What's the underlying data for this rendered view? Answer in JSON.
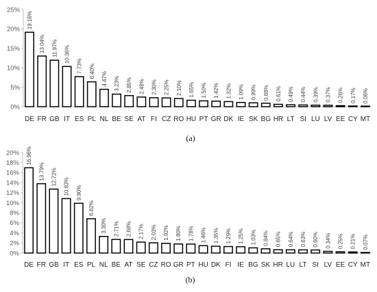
{
  "chart_data": [
    {
      "type": "bar",
      "panel_label": "(a)",
      "categories": [
        "DE",
        "FR",
        "GB",
        "IT",
        "ES",
        "PL",
        "NL",
        "BE",
        "SE",
        "AT",
        "FI",
        "CZ",
        "RO",
        "HU",
        "PT",
        "GR",
        "DK",
        "IE",
        "SK",
        "BG",
        "HR",
        "LT",
        "SI",
        "LU",
        "LV",
        "EE",
        "CY",
        "MT"
      ],
      "values": [
        19.16,
        13.04,
        11.97,
        10.36,
        7.73,
        6.4,
        4.47,
        3.23,
        2.85,
        2.48,
        2.3,
        2.25,
        2.1,
        1.65,
        1.5,
        1.42,
        1.32,
        1.09,
        0.99,
        0.88,
        0.61,
        0.49,
        0.44,
        0.39,
        0.37,
        0.26,
        0.17,
        0.06
      ],
      "data_labels": [
        "19.16%",
        "13.04%",
        "11.97%",
        "10.36%",
        "7.73%",
        "6.40%",
        "4.47%",
        "3.23%",
        "2.85%",
        "2.48%",
        "2.30%",
        "2.25%",
        "2.10%",
        "1.65%",
        "1.50%",
        "1.42%",
        "1.32%",
        "1.09%",
        "0.99%",
        "0.88%",
        "0.61%",
        "0.49%",
        "0.44%",
        "0.39%",
        "0.37%",
        "0.26%",
        "0.17%",
        "0.06%"
      ],
      "yticks": [
        0,
        5,
        10,
        15,
        20,
        25
      ],
      "ytick_labels": [
        "0%",
        "5%",
        "10%",
        "15%",
        "20%",
        "25%"
      ],
      "ylim": [
        0,
        25
      ],
      "grid": false,
      "bar_color": "#ffffff",
      "edge_color": "#000000"
    },
    {
      "type": "bar",
      "panel_label": "(b)",
      "categories": [
        "DE",
        "FR",
        "GB",
        "IT",
        "ES",
        "PL",
        "NL",
        "BE",
        "AT",
        "SE",
        "CZ",
        "RO",
        "GR",
        "PT",
        "HU",
        "DK",
        "FI",
        "IE",
        "BG",
        "SK",
        "HR",
        "LU",
        "LT",
        "SI",
        "LV",
        "EE",
        "CY",
        "MT"
      ],
      "values": [
        16.96,
        13.79,
        12.72,
        10.83,
        9.9,
        6.82,
        3.3,
        2.71,
        2.68,
        2.17,
        2.03,
        1.92,
        1.8,
        1.78,
        1.46,
        1.35,
        1.29,
        1.25,
        1.03,
        0.84,
        0.65,
        0.64,
        0.63,
        0.6,
        0.34,
        0.25,
        0.21,
        0.07
      ],
      "data_labels": [
        "16.96%",
        "13.79%",
        "12.72%",
        "10.83%",
        "9.90%",
        "6.82%",
        "3.30%",
        "2.71%",
        "2.68%",
        "2.17%",
        "2.03%",
        "1.92%",
        "1.80%",
        "1.78%",
        "1.46%",
        "1.35%",
        "1.29%",
        "1.25%",
        "1.03%",
        "0.84%",
        "0.65%",
        "0.64%",
        "0.63%",
        "0.60%",
        "0.34%",
        "0.25%",
        "0.21%",
        "0.07%"
      ],
      "yticks": [
        0,
        2,
        4,
        6,
        8,
        10,
        12,
        14,
        16,
        18,
        20
      ],
      "ytick_labels": [
        "0%",
        "2%",
        "4%",
        "6%",
        "8%",
        "10%",
        "12%",
        "14%",
        "16%",
        "18%",
        "20%"
      ],
      "ylim": [
        0,
        20
      ],
      "grid": false,
      "bar_color": "#ffffff",
      "edge_color": "#000000"
    }
  ]
}
